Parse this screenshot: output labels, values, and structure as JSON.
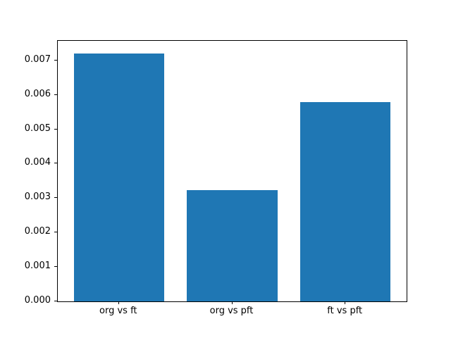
{
  "chart_data": {
    "type": "bar",
    "title": "",
    "xlabel": "",
    "ylabel": "",
    "categories": [
      "org vs ft",
      "org vs pft",
      "ft vs pft"
    ],
    "values": [
      0.00721,
      0.00323,
      0.0058
    ],
    "bar_color": "#1f77b4",
    "spine_color": "#000000",
    "text_color": "#000000",
    "background_color": "#ffffff",
    "ylim": [
      0,
      0.00757
    ],
    "xlim": [
      -0.54,
      2.54
    ],
    "bar_width": 0.8,
    "yticks": [
      0,
      0.001,
      0.002,
      0.003,
      0.004,
      0.005,
      0.006,
      0.007
    ],
    "ytick_labels": [
      "0.000",
      "0.001",
      "0.002",
      "0.003",
      "0.004",
      "0.005",
      "0.006",
      "0.007"
    ],
    "grid": false,
    "legend": null
  }
}
